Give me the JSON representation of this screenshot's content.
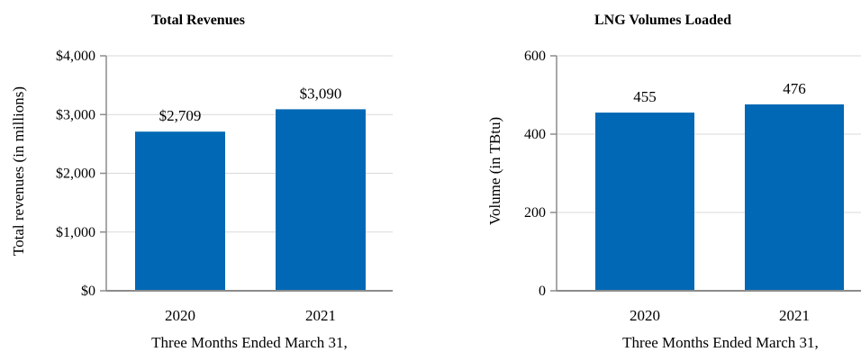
{
  "chart_data": [
    {
      "type": "bar",
      "title": "Total Revenues",
      "xlabel": "Three Months Ended March 31,",
      "ylabel": "Total revenues (in millions)",
      "categories": [
        "2020",
        "2021"
      ],
      "values": [
        2709,
        3090
      ],
      "value_labels": [
        "$2,709",
        "$3,090"
      ],
      "ylim": [
        0,
        4000
      ],
      "yticks": [
        0,
        1000,
        2000,
        3000,
        4000
      ],
      "ytick_labels": [
        "$0",
        "$1,000",
        "$2,000",
        "$3,000",
        "$4,000"
      ],
      "grid": true,
      "bar_color": "#0068b5"
    },
    {
      "type": "bar",
      "title": "LNG Volumes Loaded",
      "xlabel": "Three Months Ended March 31,",
      "ylabel": "Volume (in TBtu)",
      "categories": [
        "2020",
        "2021"
      ],
      "values": [
        455,
        476
      ],
      "value_labels": [
        "455",
        "476"
      ],
      "ylim": [
        0,
        600
      ],
      "yticks": [
        0,
        200,
        400,
        600
      ],
      "ytick_labels": [
        "0",
        "200",
        "400",
        "600"
      ],
      "grid": true,
      "bar_color": "#0068b5"
    }
  ]
}
